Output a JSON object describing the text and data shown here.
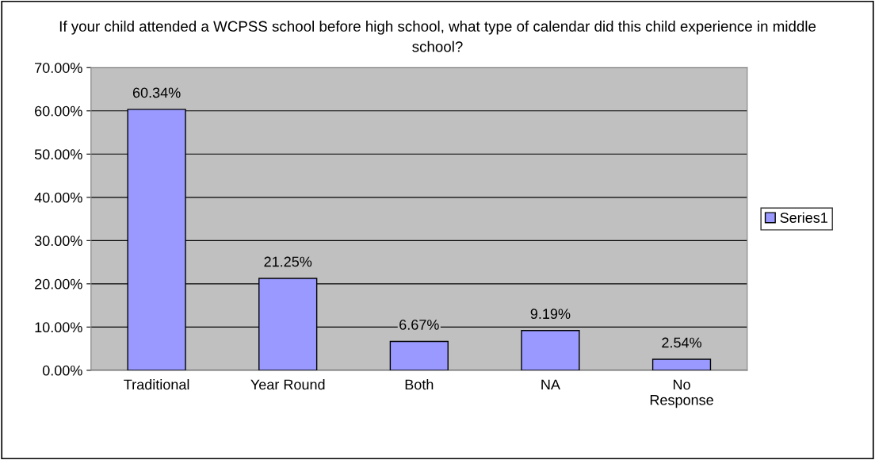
{
  "chart_data": {
    "type": "bar",
    "title": "If your child attended a WCPSS school before high school, what type of calendar did this child experience in middle school?",
    "categories": [
      "Traditional",
      "Year Round",
      "Both",
      "NA",
      "No Response"
    ],
    "series": [
      {
        "name": "Series1",
        "color": "#9999ff",
        "values": [
          60.34,
          21.25,
          6.67,
          9.19,
          2.54
        ],
        "value_labels": [
          "60.34%",
          "21.25%",
          "6.67%",
          "9.19%",
          "2.54%"
        ]
      }
    ],
    "ylim": [
      0,
      70
    ],
    "yticks": [
      {
        "value": 0,
        "label": "0.00%"
      },
      {
        "value": 10,
        "label": "10.00%"
      },
      {
        "value": 20,
        "label": "20.00%"
      },
      {
        "value": 30,
        "label": "30.00%"
      },
      {
        "value": 40,
        "label": "40.00%"
      },
      {
        "value": 50,
        "label": "50.00%"
      },
      {
        "value": 60,
        "label": "60.00%"
      },
      {
        "value": 70,
        "label": "70.00%"
      }
    ],
    "grid": "y",
    "legend": "right"
  }
}
